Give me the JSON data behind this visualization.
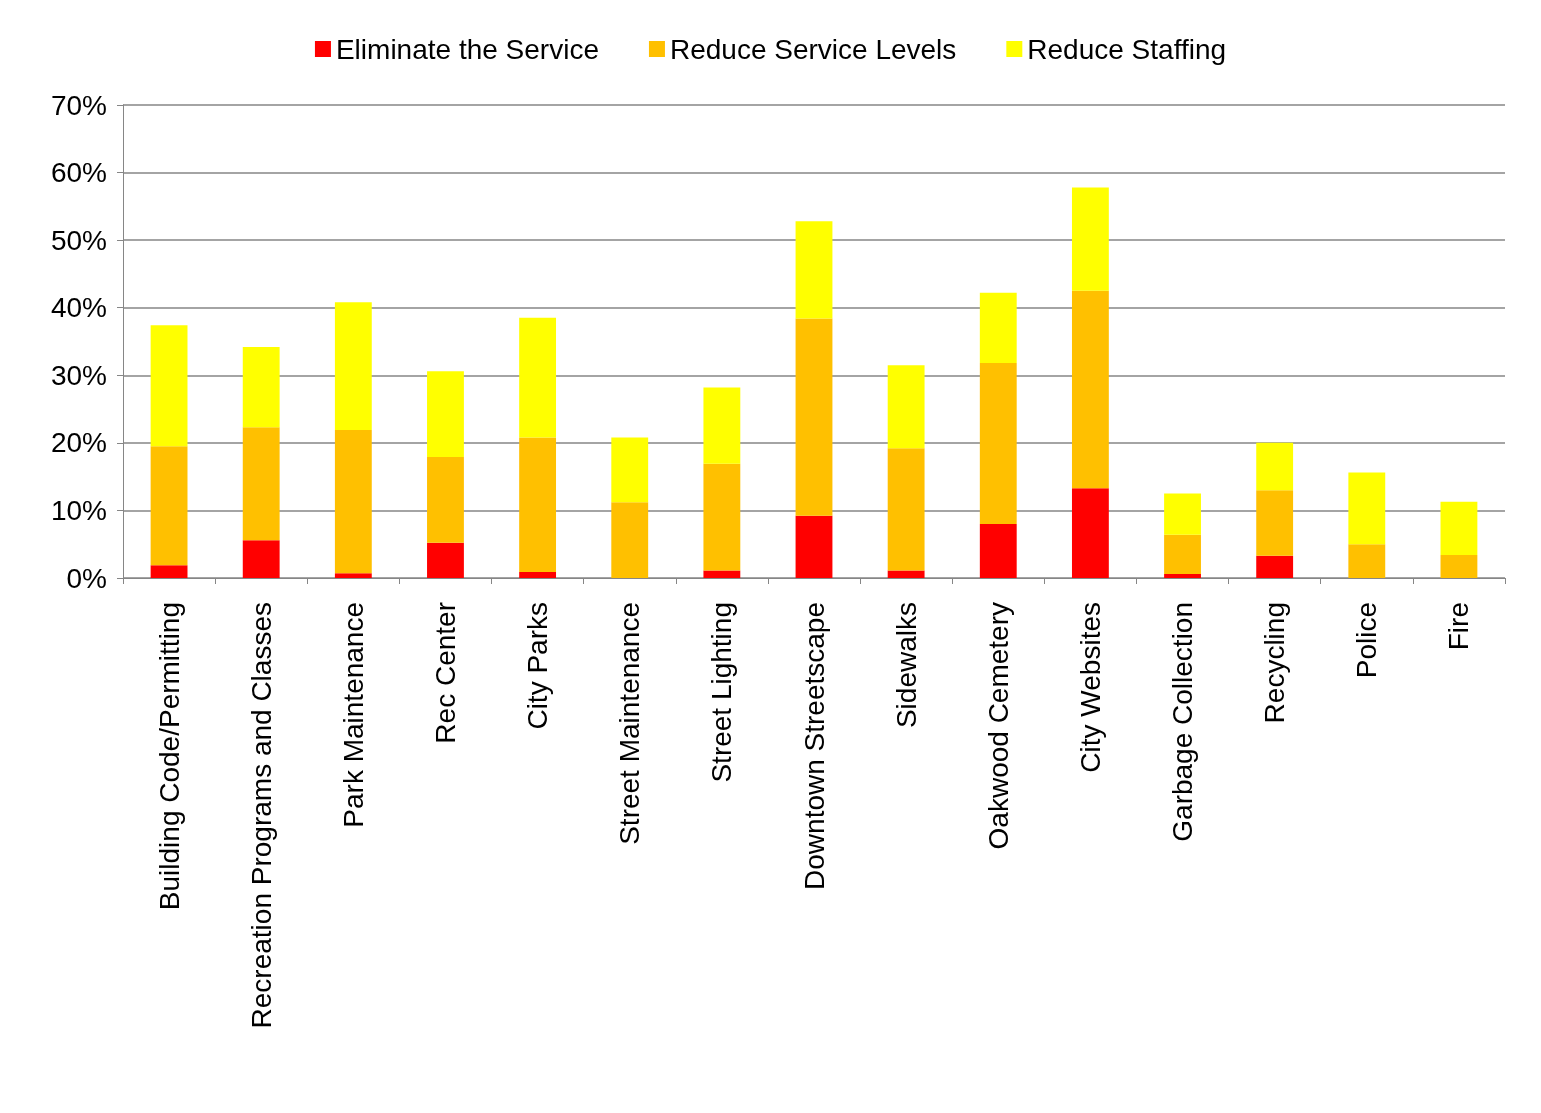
{
  "chart_data": {
    "type": "bar",
    "stacked": true,
    "categories": [
      "Building Code/Permitting",
      "Recreation Programs and Classes",
      "Park Maintenance",
      "Rec Center",
      "City Parks",
      "Street Maintenance",
      "Street Lighting",
      "Downtown Streetscape",
      "Sidewalks",
      "Oakwood Cemetery",
      "City Websites",
      "Garbage Collection",
      "Recycling",
      "Police",
      "Fire"
    ],
    "series": [
      {
        "name": "Eliminate the Service",
        "color": "#ff0000",
        "values": [
          1.9,
          5.6,
          0.7,
          5.2,
          0.9,
          0,
          1.1,
          9.2,
          1.1,
          8.0,
          13.3,
          0.6,
          3.3,
          0,
          0
        ]
      },
      {
        "name": "Reduce Service Levels",
        "color": "#ffc000",
        "values": [
          17.6,
          16.7,
          21.2,
          12.7,
          19.9,
          11.2,
          15.8,
          29.2,
          18.1,
          23.8,
          29.2,
          5.8,
          9.7,
          5.0,
          3.4
        ]
      },
      {
        "name": "Reduce Staffing",
        "color": "#ffff00",
        "values": [
          17.9,
          11.9,
          18.9,
          12.7,
          17.7,
          9.6,
          11.3,
          14.4,
          12.3,
          10.4,
          15.3,
          6.1,
          7.0,
          10.6,
          7.9
        ]
      }
    ],
    "ylim": [
      0,
      70
    ],
    "yticks": [
      {
        "value": 0,
        "label": "0%"
      },
      {
        "value": 10,
        "label": "10%"
      },
      {
        "value": 20,
        "label": "20%"
      },
      {
        "value": 30,
        "label": "30%"
      },
      {
        "value": 40,
        "label": "40%"
      },
      {
        "value": 50,
        "label": "50%"
      },
      {
        "value": 60,
        "label": "60%"
      },
      {
        "value": 70,
        "label": "70%"
      }
    ],
    "grid": "y",
    "legend": "top"
  }
}
